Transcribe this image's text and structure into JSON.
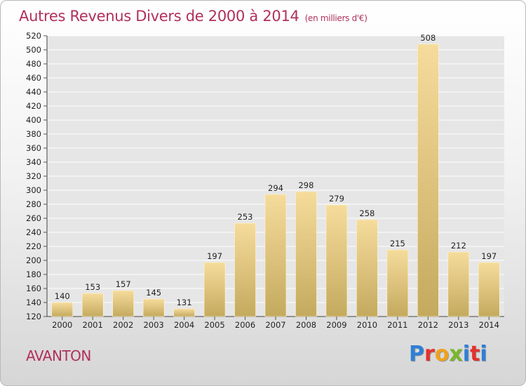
{
  "chart_data": {
    "type": "bar",
    "title": "Autres Revenus Divers de 2000 à 2014",
    "subtitle": "(en milliers d'€)",
    "categories": [
      "2000",
      "2001",
      "2002",
      "2003",
      "2004",
      "2005",
      "2006",
      "2007",
      "2008",
      "2009",
      "2010",
      "2011",
      "2012",
      "2013",
      "2014"
    ],
    "values": [
      140,
      153,
      157,
      145,
      131,
      197,
      253,
      294,
      298,
      279,
      258,
      215,
      508,
      212,
      197
    ],
    "ylim": [
      120,
      520
    ],
    "ytick_step": 20,
    "grid": true,
    "bar_color_top": "#f6dc9c",
    "bar_color_bottom": "#c4aa5e"
  },
  "footer": {
    "commune": "AVANTON",
    "brand": "Proxiti"
  },
  "colors": {
    "title": "#b0305a",
    "grid": "#ffffff"
  }
}
